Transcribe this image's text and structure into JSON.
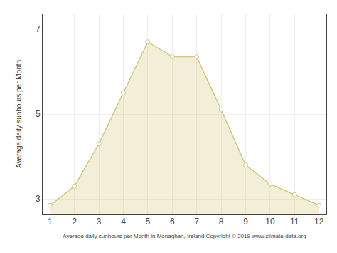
{
  "chart_data": {
    "type": "area",
    "x": [
      1,
      2,
      3,
      4,
      5,
      6,
      7,
      8,
      9,
      10,
      11,
      12
    ],
    "series": [
      {
        "values": [
          2.85,
          3.3,
          4.3,
          5.5,
          6.7,
          6.35,
          6.35,
          5.1,
          3.8,
          3.35,
          3.1,
          2.85
        ],
        "color": "#D4C87A",
        "marker": "circle"
      }
    ],
    "xlabel": "Average daily sunhours per Month in Monaghan, Ireland Copyright © 2019 www.climate-data.org",
    "ylabel": "Average daily sunhours per Month",
    "xlim": [
      0.7,
      12.3
    ],
    "ylim": [
      2.65,
      7.35
    ],
    "xticks": [
      1,
      2,
      3,
      4,
      5,
      6,
      7,
      8,
      9,
      10,
      11,
      12
    ],
    "yticks": [
      3,
      5,
      7
    ],
    "grid": true
  }
}
